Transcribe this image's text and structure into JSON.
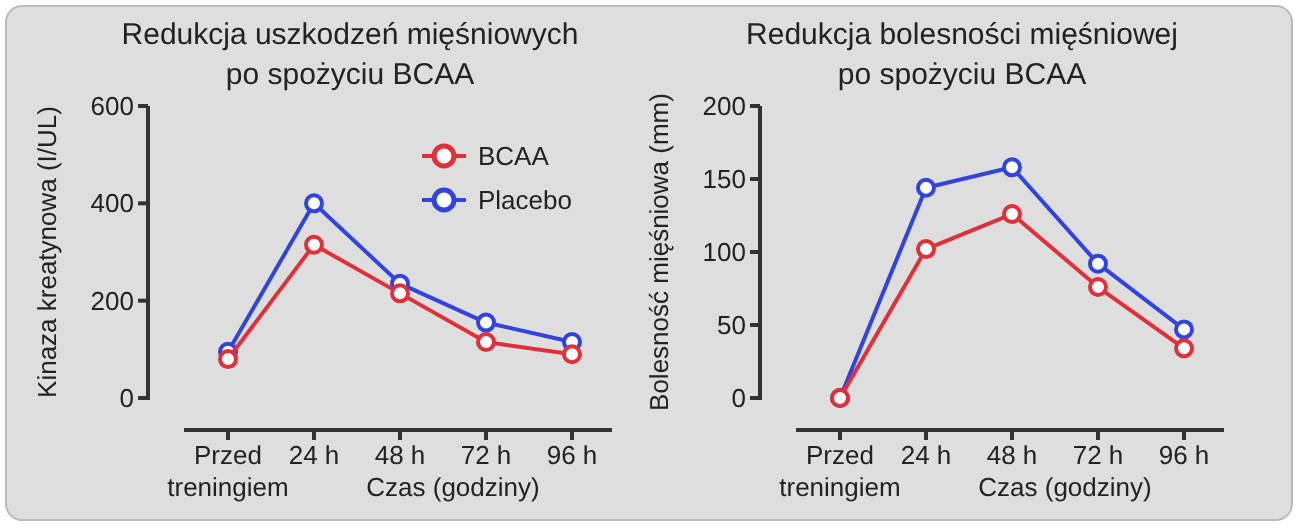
{
  "chart_data": [
    {
      "type": "line",
      "title": "Redukcja uszkodzeń mięśniowych\npo spożyciu BCAA",
      "xlabel": "Czas (godziny)",
      "ylabel": "Kinaza kreatynowa (I/UL)",
      "categories": [
        "Przed treningiem",
        "24 h",
        "48 h",
        "72 h",
        "96 h"
      ],
      "ylim": [
        0,
        600
      ],
      "yticks": [
        0,
        200,
        400,
        600
      ],
      "marker": "circle",
      "legend": "top right",
      "series": [
        {
          "name": "BCAA",
          "color": "#e0303a",
          "values": [
            80,
            315,
            215,
            115,
            90
          ]
        },
        {
          "name": "Placebo",
          "color": "#3344dd",
          "values": [
            95,
            400,
            235,
            155,
            115
          ]
        }
      ]
    },
    {
      "type": "line",
      "title": "Redukcja bolesności mięśniowej\npo spożyciu BCAA",
      "xlabel": "Czas (godziny)",
      "ylabel": "Bolesność mięśniowa (mm)",
      "categories": [
        "Przed treningiem",
        "24 h",
        "48 h",
        "72 h",
        "96 h"
      ],
      "ylim": [
        0,
        200
      ],
      "yticks": [
        0,
        50,
        100,
        150,
        200
      ],
      "marker": "circle",
      "series": [
        {
          "color": "#e0303a",
          "values": [
            0,
            102,
            126,
            76,
            34
          ]
        },
        {
          "color": "#3344dd",
          "values": [
            0,
            144,
            158,
            92,
            47
          ]
        }
      ]
    }
  ]
}
